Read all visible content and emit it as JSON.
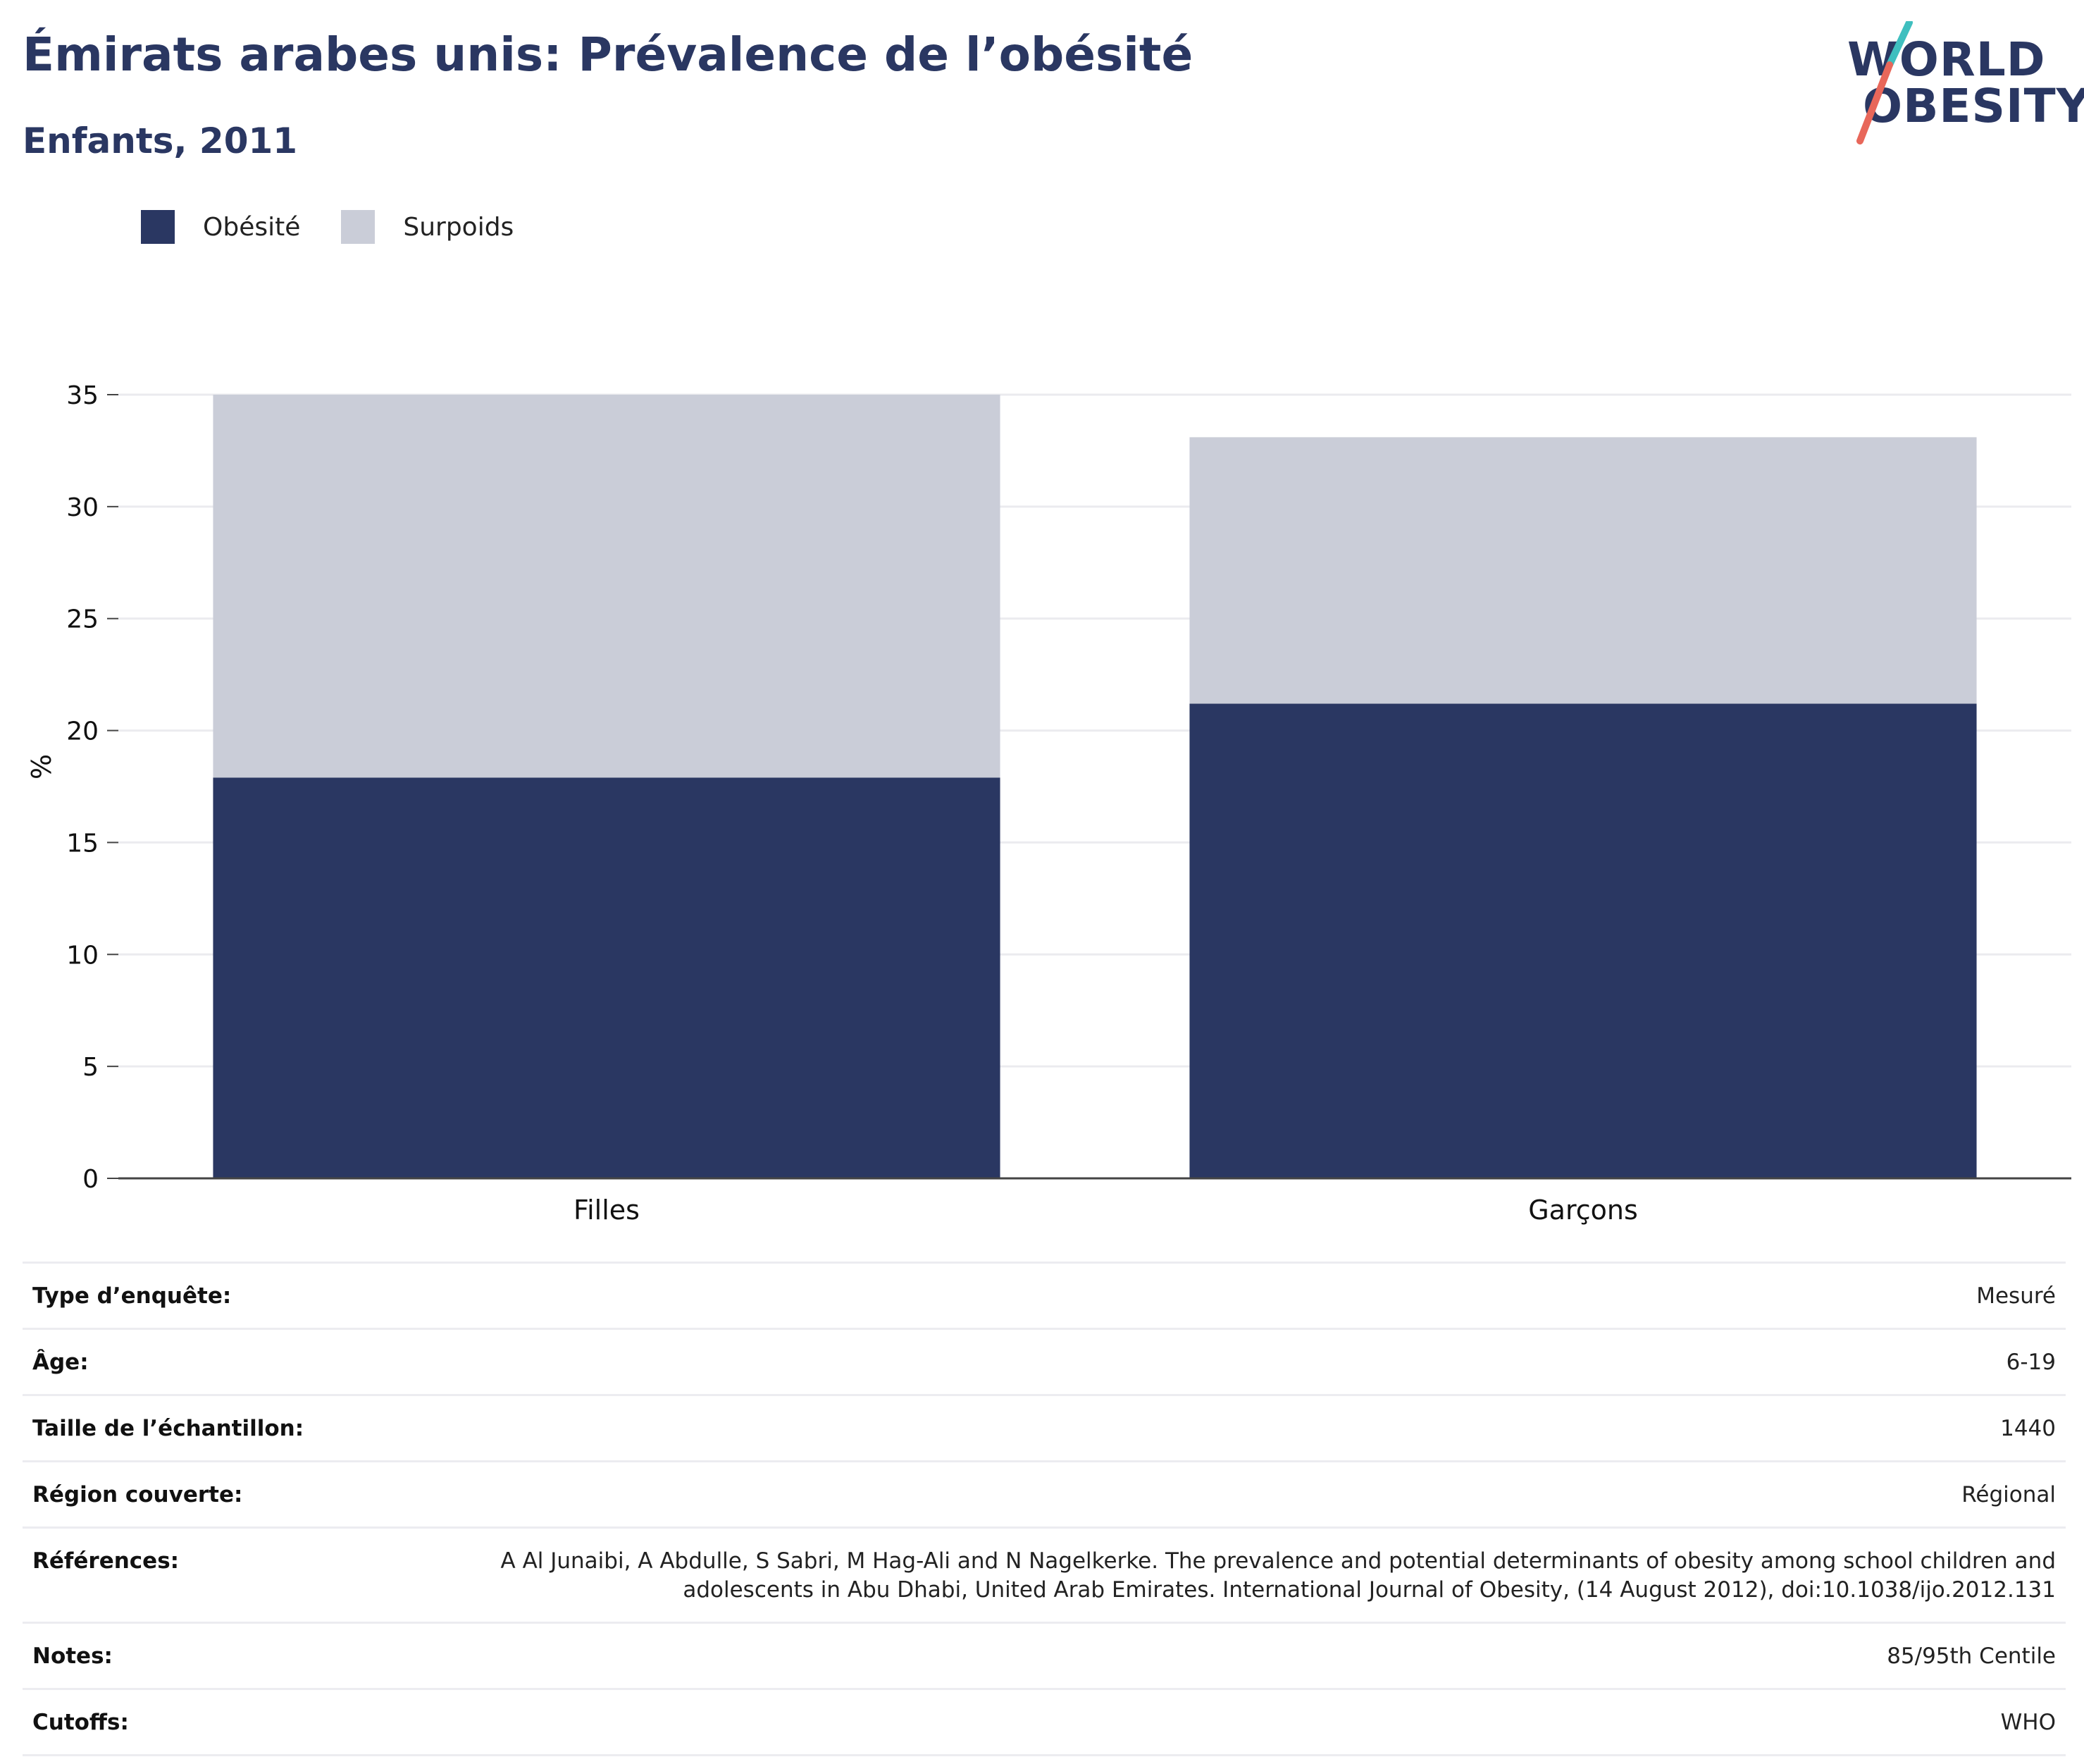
{
  "header": {
    "title": "Émirats arabes unis: Prévalence de l’obésité",
    "subtitle": "Enfants, 2011"
  },
  "logo": {
    "line1": "WORLD",
    "line2": "OBESITY",
    "colors": {
      "text": "#2a3762",
      "slash_top": "#3fbfbf",
      "slash_bottom": "#e8675a"
    }
  },
  "chart_data": {
    "type": "bar",
    "stacked": true,
    "categories": [
      "Filles",
      "Garçons"
    ],
    "series": [
      {
        "name": "Obésité",
        "color": "#2a3762",
        "values": [
          17.9,
          21.2
        ]
      },
      {
        "name": "Surpoids",
        "color": "#cacdd8",
        "values": [
          17.1,
          11.9
        ]
      }
    ],
    "ylabel": "%",
    "ylim": [
      0,
      35
    ],
    "yticks": [
      "0",
      "5",
      "10",
      "15",
      "20",
      "25",
      "30",
      "35"
    ],
    "grid": true,
    "legend": "top-left"
  },
  "details": [
    {
      "label": "Type d’enquête:",
      "value": "Mesuré"
    },
    {
      "label": "Âge:",
      "value": "6-19"
    },
    {
      "label": "Taille de l’échantillon:",
      "value": "1440"
    },
    {
      "label": "Région couverte:",
      "value": "Régional"
    },
    {
      "label": "Références:",
      "value": "A Al Junaibi, A Abdulle, S Sabri, M Hag-Ali and N Nagelkerke. The prevalence and potential determinants of obesity among school children and adolescents in Abu Dhabi, United Arab Emirates. International Journal of Obesity, (14 August 2012), doi:10.1038/ijo.2012.131"
    },
    {
      "label": "Notes:",
      "value": "85/95th Centile"
    },
    {
      "label": "Cutoffs:",
      "value": "WHO"
    }
  ]
}
